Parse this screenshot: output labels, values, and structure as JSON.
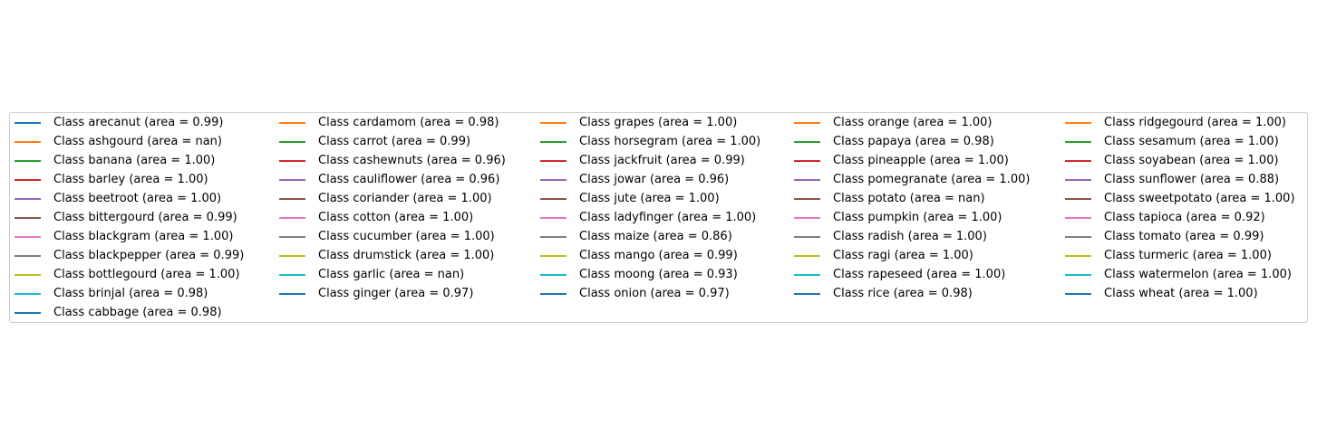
{
  "chart_data": {
    "type": "line",
    "title": "",
    "xlabel": "",
    "ylabel": "",
    "legend_placement": "center",
    "legend_columns": 5,
    "series": [
      {
        "name": "Class arecanut (area = 0.99)",
        "color": "#1f77b4"
      },
      {
        "name": "Class ashgourd (area = nan)",
        "color": "#ff7f0e"
      },
      {
        "name": "Class banana (area = 1.00)",
        "color": "#2ca02c"
      },
      {
        "name": "Class barley (area = 1.00)",
        "color": "#d62728"
      },
      {
        "name": "Class beetroot (area = 1.00)",
        "color": "#9467bd"
      },
      {
        "name": "Class bittergourd (area = 0.99)",
        "color": "#8c564b"
      },
      {
        "name": "Class blackgram (area = 1.00)",
        "color": "#e377c2"
      },
      {
        "name": "Class blackpepper (area = 0.99)",
        "color": "#7f7f7f"
      },
      {
        "name": "Class bottlegourd (area = 1.00)",
        "color": "#bcbd22"
      },
      {
        "name": "Class brinjal (area = 0.98)",
        "color": "#17becf"
      },
      {
        "name": "Class cabbage (area = 0.98)",
        "color": "#1f77b4"
      },
      {
        "name": "Class cardamom (area = 0.98)",
        "color": "#ff7f0e"
      },
      {
        "name": "Class carrot (area = 0.99)",
        "color": "#2ca02c"
      },
      {
        "name": "Class cashewnuts (area = 0.96)",
        "color": "#d62728"
      },
      {
        "name": "Class cauliflower (area = 0.96)",
        "color": "#9467bd"
      },
      {
        "name": "Class coriander (area = 1.00)",
        "color": "#8c564b"
      },
      {
        "name": "Class cotton (area = 1.00)",
        "color": "#e377c2"
      },
      {
        "name": "Class cucumber (area = 1.00)",
        "color": "#7f7f7f"
      },
      {
        "name": "Class drumstick (area = 1.00)",
        "color": "#bcbd22"
      },
      {
        "name": "Class garlic (area = nan)",
        "color": "#17becf"
      },
      {
        "name": "Class ginger (area = 0.97)",
        "color": "#1f77b4"
      },
      {
        "name": "Class grapes (area = 1.00)",
        "color": "#ff7f0e"
      },
      {
        "name": "Class horsegram (area = 1.00)",
        "color": "#2ca02c"
      },
      {
        "name": "Class jackfruit (area = 0.99)",
        "color": "#d62728"
      },
      {
        "name": "Class jowar (area = 0.96)",
        "color": "#9467bd"
      },
      {
        "name": "Class jute (area = 1.00)",
        "color": "#8c564b"
      },
      {
        "name": "Class ladyfinger (area = 1.00)",
        "color": "#e377c2"
      },
      {
        "name": "Class maize (area = 0.86)",
        "color": "#7f7f7f"
      },
      {
        "name": "Class mango (area = 0.99)",
        "color": "#bcbd22"
      },
      {
        "name": "Class moong (area = 0.93)",
        "color": "#17becf"
      },
      {
        "name": "Class onion (area = 0.97)",
        "color": "#1f77b4"
      },
      {
        "name": "Class orange (area = 1.00)",
        "color": "#ff7f0e"
      },
      {
        "name": "Class papaya (area = 0.98)",
        "color": "#2ca02c"
      },
      {
        "name": "Class pineapple (area = 1.00)",
        "color": "#d62728"
      },
      {
        "name": "Class pomegranate (area = 1.00)",
        "color": "#9467bd"
      },
      {
        "name": "Class potato (area = nan)",
        "color": "#8c564b"
      },
      {
        "name": "Class pumpkin (area = 1.00)",
        "color": "#e377c2"
      },
      {
        "name": "Class radish (area = 1.00)",
        "color": "#7f7f7f"
      },
      {
        "name": "Class ragi (area = 1.00)",
        "color": "#bcbd22"
      },
      {
        "name": "Class rapeseed (area = 1.00)",
        "color": "#17becf"
      },
      {
        "name": "Class rice (area = 0.98)",
        "color": "#1f77b4"
      },
      {
        "name": "Class ridgegourd (area = 1.00)",
        "color": "#ff7f0e"
      },
      {
        "name": "Class sesamum (area = 1.00)",
        "color": "#2ca02c"
      },
      {
        "name": "Class soyabean (area = 1.00)",
        "color": "#d62728"
      },
      {
        "name": "Class sunflower (area = 0.88)",
        "color": "#9467bd"
      },
      {
        "name": "Class sweetpotato (area = 1.00)",
        "color": "#8c564b"
      },
      {
        "name": "Class tapioca (area = 0.92)",
        "color": "#e377c2"
      },
      {
        "name": "Class tomato (area = 0.99)",
        "color": "#7f7f7f"
      },
      {
        "name": "Class turmeric (area = 1.00)",
        "color": "#bcbd22"
      },
      {
        "name": "Class watermelon (area = 1.00)",
        "color": "#17becf"
      },
      {
        "name": "Class wheat (area = 1.00)",
        "color": "#1f77b4"
      }
    ]
  }
}
